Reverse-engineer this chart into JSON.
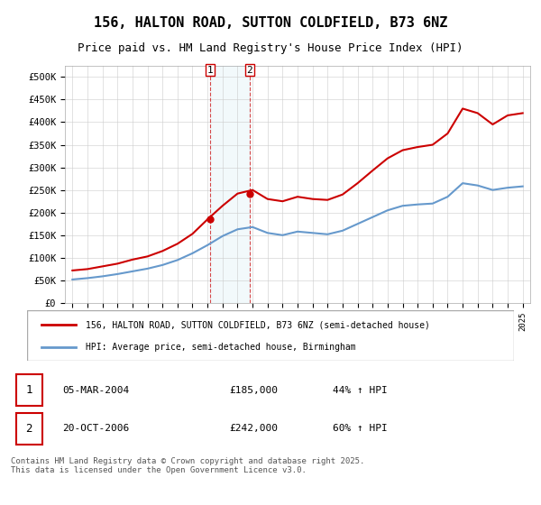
{
  "title": "156, HALTON ROAD, SUTTON COLDFIELD, B73 6NZ",
  "subtitle": "Price paid vs. HM Land Registry's House Price Index (HPI)",
  "legend_line1": "156, HALTON ROAD, SUTTON COLDFIELD, B73 6NZ (semi-detached house)",
  "legend_line2": "HPI: Average price, semi-detached house, Birmingham",
  "footnote": "Contains HM Land Registry data © Crown copyright and database right 2025.\nThis data is licensed under the Open Government Licence v3.0.",
  "table": [
    {
      "num": "1",
      "date": "05-MAR-2004",
      "price": "£185,000",
      "hpi": "44% ↑ HPI"
    },
    {
      "num": "2",
      "date": "20-OCT-2006",
      "price": "£242,000",
      "hpi": "60% ↑ HPI"
    }
  ],
  "red_color": "#cc0000",
  "blue_color": "#6699cc",
  "sale1_year": 2004.18,
  "sale2_year": 2006.8,
  "sale1_price": 185000,
  "sale2_price": 242000,
  "ylim": [
    0,
    500000
  ],
  "yticks": [
    0,
    50000,
    100000,
    150000,
    200000,
    250000,
    300000,
    350000,
    400000,
    450000,
    500000
  ],
  "hpi_years": [
    1995,
    1996,
    1997,
    1998,
    1999,
    2000,
    2001,
    2002,
    2003,
    2004,
    2005,
    2006,
    2007,
    2008,
    2009,
    2010,
    2011,
    2012,
    2013,
    2014,
    2015,
    2016,
    2017,
    2018,
    2019,
    2020,
    2021,
    2022,
    2023,
    2024,
    2025
  ],
  "hpi_values": [
    52000,
    55000,
    59000,
    64000,
    70000,
    76000,
    84000,
    95000,
    110000,
    128000,
    148000,
    163000,
    168000,
    155000,
    150000,
    158000,
    155000,
    152000,
    160000,
    175000,
    190000,
    205000,
    215000,
    218000,
    220000,
    235000,
    265000,
    260000,
    250000,
    255000,
    258000
  ],
  "red_years": [
    1995,
    1996,
    1997,
    1998,
    1999,
    2000,
    2001,
    2002,
    2003,
    2004,
    2005,
    2006,
    2007,
    2008,
    2009,
    2010,
    2011,
    2012,
    2013,
    2014,
    2015,
    2016,
    2017,
    2018,
    2019,
    2020,
    2021,
    2022,
    2023,
    2024,
    2025
  ],
  "red_values": [
    72000,
    75000,
    81000,
    87000,
    96000,
    103000,
    115000,
    131000,
    153000,
    185000,
    215000,
    242000,
    250000,
    230000,
    225000,
    235000,
    230000,
    228000,
    240000,
    265000,
    293000,
    320000,
    338000,
    345000,
    350000,
    375000,
    430000,
    420000,
    395000,
    415000,
    420000
  ]
}
